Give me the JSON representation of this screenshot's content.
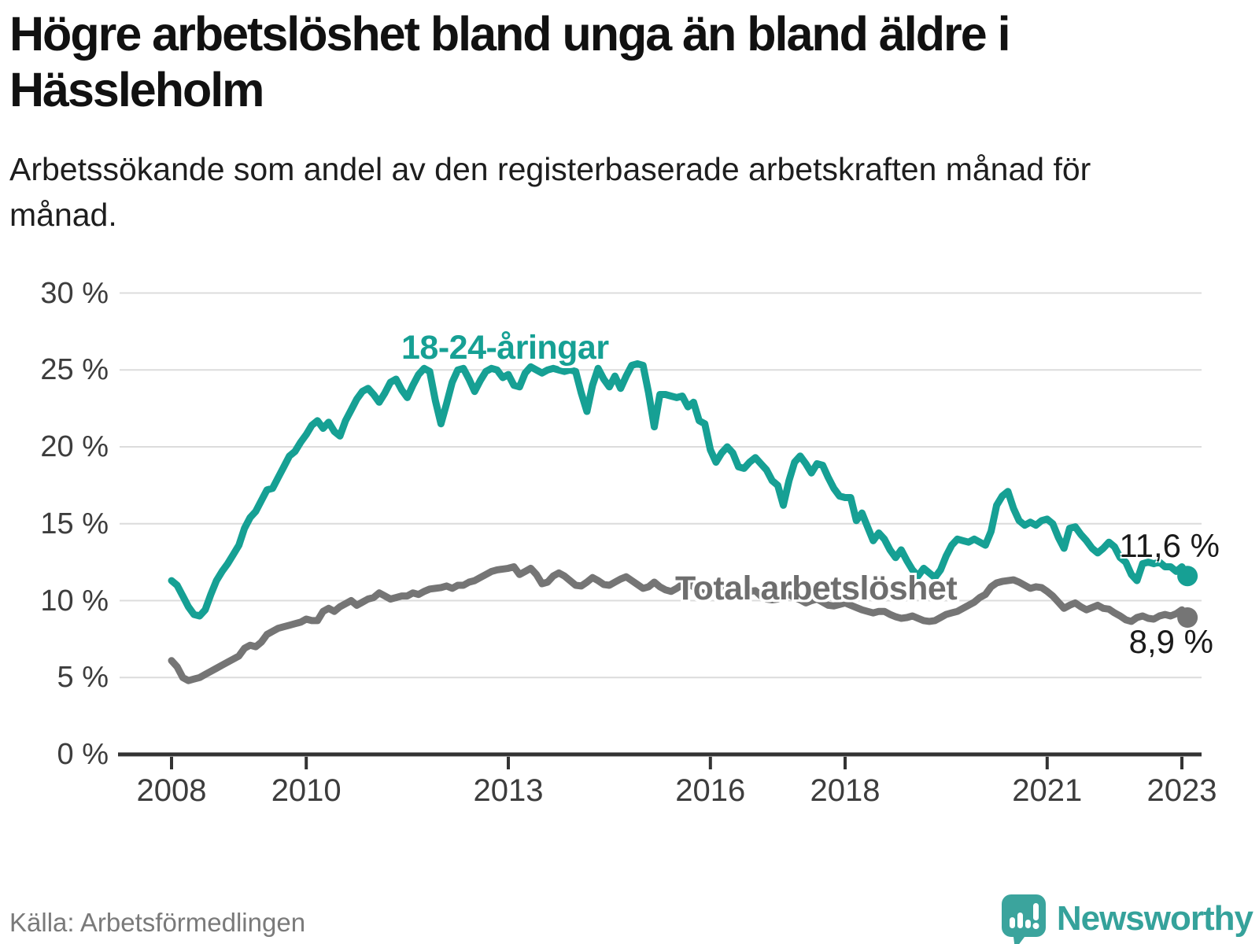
{
  "title": "Högre arbetslöshet bland unga än bland äldre i Hässleholm",
  "subtitle": "Arbetssökande som andel av den registerbaserade arbetskraften månad för månad.",
  "source": "Källa: Arbetsförmedlingen",
  "brand": {
    "name": "Newsworthy"
  },
  "colors": {
    "accent_teal": "#16a094",
    "line_gray": "#757575",
    "grid": "#dcdcdc",
    "axis": "#333333",
    "logo_teal": "#3ba49d"
  },
  "chart_data": {
    "type": "line",
    "title": "Högre arbetslöshet bland unga än bland äldre i Hässleholm",
    "xlabel": "",
    "ylabel": "",
    "x_start": "2008-01",
    "x_end": "2023-02",
    "x_step": "month",
    "ylim": [
      0,
      30
    ],
    "grid": "horizontal",
    "y_ticks": [
      {
        "label": "0 %",
        "value": 0
      },
      {
        "label": "5 %",
        "value": 5
      },
      {
        "label": "10 %",
        "value": 10
      },
      {
        "label": "15 %",
        "value": 15
      },
      {
        "label": "20 %",
        "value": 20
      },
      {
        "label": "25 %",
        "value": 25
      },
      {
        "label": "30 %",
        "value": 30
      }
    ],
    "x_ticks": [
      {
        "label": "2008",
        "year": 2008
      },
      {
        "label": "2010",
        "year": 2010
      },
      {
        "label": "2013",
        "year": 2013
      },
      {
        "label": "2016",
        "year": 2016
      },
      {
        "label": "2018",
        "year": 2018
      },
      {
        "label": "2021",
        "year": 2021
      },
      {
        "label": "2023",
        "year": 2023
      }
    ],
    "series": [
      {
        "id": "youth",
        "name": "18-24-åringar",
        "color": "#16a094",
        "end_label": "11,6 %",
        "end_value": 11.6,
        "values": [
          11.3,
          11.0,
          10.3,
          9.6,
          9.1,
          9.0,
          9.4,
          10.4,
          11.3,
          11.9,
          12.4,
          13.0,
          13.6,
          14.7,
          15.4,
          15.8,
          16.5,
          17.2,
          17.3,
          18.0,
          18.7,
          19.4,
          19.7,
          20.3,
          20.8,
          21.4,
          21.7,
          21.2,
          21.6,
          21.0,
          20.7,
          21.7,
          22.4,
          23.1,
          23.6,
          23.8,
          23.4,
          22.9,
          23.5,
          24.2,
          24.4,
          23.7,
          23.2,
          24.0,
          24.7,
          25.1,
          24.9,
          23.0,
          21.5,
          22.8,
          24.2,
          25.0,
          25.1,
          24.4,
          23.6,
          24.3,
          24.9,
          25.1,
          25.0,
          24.5,
          24.7,
          24.0,
          23.9,
          24.8,
          25.2,
          25.0,
          24.8,
          25.0,
          25.1,
          25.0,
          24.9,
          25.0,
          24.9,
          23.5,
          22.3,
          24.0,
          25.1,
          24.4,
          23.9,
          24.6,
          23.8,
          24.6,
          25.3,
          25.4,
          25.3,
          23.5,
          21.3,
          23.4,
          23.4,
          23.3,
          23.2,
          23.3,
          22.6,
          22.9,
          21.7,
          21.5,
          19.8,
          19.0,
          19.6,
          20.0,
          19.6,
          18.7,
          18.6,
          19.0,
          19.3,
          18.9,
          18.5,
          17.8,
          17.5,
          16.2,
          17.8,
          19.0,
          19.4,
          18.9,
          18.3,
          18.9,
          18.8,
          18.0,
          17.3,
          16.8,
          16.7,
          16.7,
          15.2,
          15.7,
          14.8,
          13.9,
          14.4,
          14.0,
          13.3,
          12.8,
          13.3,
          12.6,
          12.0,
          11.6,
          12.1,
          11.8,
          11.5,
          12.0,
          12.9,
          13.6,
          14.0,
          13.9,
          13.8,
          14.0,
          13.8,
          13.6,
          14.5,
          16.2,
          16.8,
          17.1,
          16.0,
          15.2,
          14.9,
          15.1,
          14.9,
          15.2,
          15.3,
          15.0,
          14.1,
          13.4,
          14.7,
          14.8,
          14.3,
          13.9,
          13.4,
          13.1,
          13.4,
          13.8,
          13.5,
          12.8,
          12.5,
          11.7,
          11.3,
          12.4,
          12.5,
          12.4,
          12.5,
          12.2,
          12.2,
          11.9,
          12.2,
          11.6
        ]
      },
      {
        "id": "total",
        "name": "Total arbetslöshet",
        "color": "#757575",
        "end_label": "8,9 %",
        "end_value": 8.9,
        "values": [
          6.1,
          5.7,
          5.0,
          4.8,
          4.9,
          5.0,
          5.2,
          5.4,
          5.6,
          5.8,
          6.0,
          6.2,
          6.4,
          6.9,
          7.1,
          7.0,
          7.3,
          7.8,
          8.0,
          8.2,
          8.3,
          8.4,
          8.5,
          8.6,
          8.8,
          8.7,
          8.7,
          9.3,
          9.5,
          9.3,
          9.6,
          9.8,
          10.0,
          9.7,
          9.9,
          10.1,
          10.2,
          10.5,
          10.3,
          10.1,
          10.2,
          10.3,
          10.3,
          10.5,
          10.4,
          10.6,
          10.75,
          10.8,
          10.85,
          10.95,
          10.8,
          11.0,
          11.0,
          11.2,
          11.3,
          11.5,
          11.7,
          11.9,
          12.0,
          12.05,
          12.1,
          12.2,
          11.7,
          11.9,
          12.1,
          11.7,
          11.1,
          11.2,
          11.6,
          11.8,
          11.6,
          11.3,
          11.0,
          10.95,
          11.2,
          11.5,
          11.3,
          11.05,
          11.0,
          11.2,
          11.4,
          11.55,
          11.3,
          11.05,
          10.8,
          10.9,
          11.2,
          10.9,
          10.7,
          10.6,
          10.8,
          11.05,
          11.15,
          10.9,
          10.6,
          10.45,
          10.5,
          10.7,
          10.85,
          10.6,
          10.4,
          10.2,
          10.4,
          10.6,
          10.65,
          10.3,
          10.1,
          10.05,
          10.1,
          10.3,
          10.4,
          10.2,
          10.05,
          9.85,
          10.0,
          10.1,
          9.9,
          9.7,
          9.65,
          9.75,
          9.85,
          9.7,
          9.55,
          9.4,
          9.3,
          9.2,
          9.3,
          9.3,
          9.1,
          8.95,
          8.85,
          8.9,
          9.0,
          8.85,
          8.7,
          8.65,
          8.7,
          8.9,
          9.1,
          9.2,
          9.3,
          9.5,
          9.7,
          9.9,
          10.2,
          10.4,
          10.9,
          11.15,
          11.25,
          11.3,
          11.35,
          11.2,
          11.0,
          10.8,
          10.9,
          10.85,
          10.6,
          10.3,
          9.9,
          9.5,
          9.7,
          9.85,
          9.6,
          9.4,
          9.55,
          9.7,
          9.5,
          9.45,
          9.2,
          9.0,
          8.75,
          8.65,
          8.9,
          9.0,
          8.85,
          8.8,
          9.0,
          9.1,
          9.0,
          9.15,
          9.4,
          8.9
        ]
      }
    ]
  }
}
